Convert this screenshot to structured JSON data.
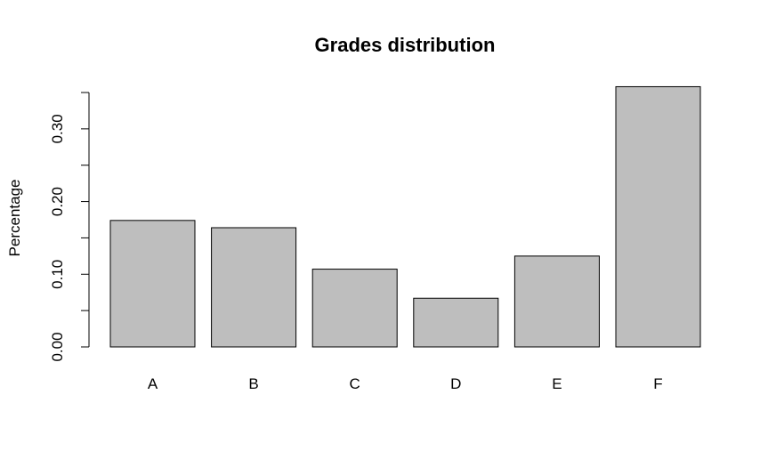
{
  "chart_data": {
    "type": "bar",
    "title": "Grades distribution",
    "xlabel": "",
    "ylabel": "Percentage",
    "categories": [
      "A",
      "B",
      "C",
      "D",
      "E",
      "F"
    ],
    "values": [
      0.174,
      0.164,
      0.107,
      0.067,
      0.125,
      0.358
    ],
    "ylim": [
      0,
      0.35
    ],
    "y_ticks": [
      0.0,
      0.05,
      0.1,
      0.15,
      0.2,
      0.25,
      0.3,
      0.35
    ],
    "y_tick_labels": [
      {
        "value": 0.0,
        "label": "0.00"
      },
      {
        "value": 0.1,
        "label": "0.10"
      },
      {
        "value": 0.2,
        "label": "0.20"
      },
      {
        "value": 0.3,
        "label": "0.30"
      }
    ],
    "bar_fill": "#bebebe",
    "bar_stroke": "#000000",
    "grid": false,
    "legend": "none"
  }
}
